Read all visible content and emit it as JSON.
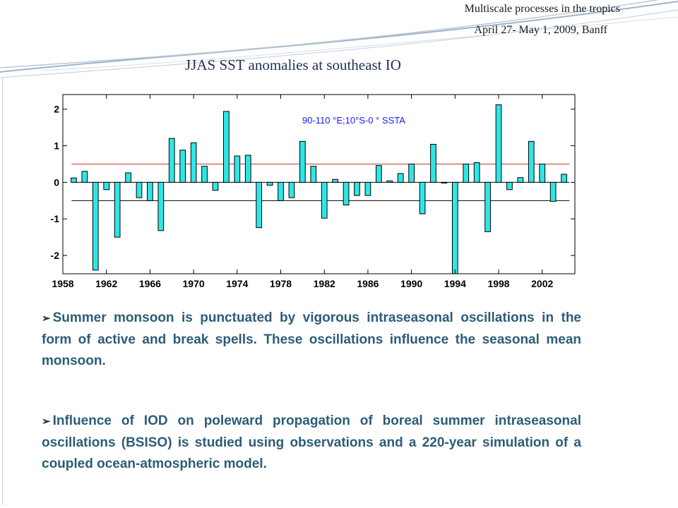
{
  "header": {
    "line1": "Multiscale processes in the tropics",
    "line2": "April 27- May 1, 2009, Banff"
  },
  "slide_title": "JJAS SST anomalies at southeast IO",
  "chart_data": {
    "type": "bar",
    "title": "90-110 °E;10°S-0 ° SSTA",
    "xlabel": "",
    "ylabel": "",
    "x": [
      1959,
      1960,
      1961,
      1962,
      1963,
      1964,
      1965,
      1966,
      1967,
      1968,
      1969,
      1970,
      1971,
      1972,
      1973,
      1974,
      1975,
      1976,
      1977,
      1978,
      1979,
      1980,
      1981,
      1982,
      1983,
      1984,
      1985,
      1986,
      1987,
      1988,
      1989,
      1990,
      1991,
      1992,
      1993,
      1994,
      1995,
      1996,
      1997,
      1998,
      1999,
      2000,
      2001,
      2002,
      2003,
      2004
    ],
    "values": [
      0.12,
      0.3,
      -2.4,
      -0.2,
      -1.5,
      0.26,
      -0.42,
      -0.5,
      -1.32,
      1.2,
      0.88,
      1.08,
      0.44,
      -0.22,
      1.94,
      0.72,
      0.74,
      -1.24,
      -0.08,
      -0.5,
      -0.42,
      1.12,
      0.44,
      -0.98,
      0.08,
      -0.62,
      -0.36,
      -0.36,
      0.46,
      0.04,
      0.24,
      0.5,
      -0.86,
      1.04,
      -0.02,
      -2.55,
      0.5,
      0.54,
      -1.35,
      2.12,
      -0.2,
      0.13,
      1.12,
      0.5,
      -0.52,
      0.22
    ],
    "xlim": [
      1958,
      2005
    ],
    "ylim": [
      -2.5,
      2.4
    ],
    "xticks": [
      1958,
      1962,
      1966,
      1970,
      1974,
      1978,
      1982,
      1986,
      1990,
      1994,
      1998,
      2002
    ],
    "yticks": [
      -2,
      -1,
      0,
      1,
      2
    ],
    "reference_lines": [
      {
        "value": 0.5,
        "color": "#c0392b"
      },
      {
        "value": 0,
        "color": "#000000"
      },
      {
        "value": -0.5,
        "color": "#000000"
      }
    ],
    "bar_color": "#2fe6e6",
    "title_color": "#1a1aff",
    "grid": false
  },
  "bullets": [
    {
      "arrow": "➢",
      "text": "Summer monsoon is punctuated by vigorous intraseasonal oscillations in the form of active and break spells. These oscillations influence the seasonal mean monsoon."
    },
    {
      "arrow": "➢",
      "text": "Influence of IOD on poleward propagation of boreal summer intraseasonal oscillations (BSISO) is studied using observations and a 220-year simulation of a coupled ocean-atmospheric model."
    }
  ],
  "colors": {
    "bullet_text": "#2c5d78",
    "swoosh": "#9fb4c8"
  }
}
